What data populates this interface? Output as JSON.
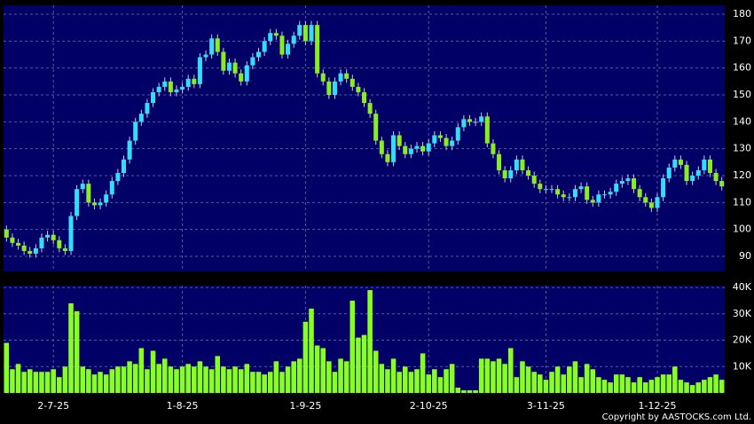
{
  "chart_data": [
    {
      "type": "candlestick",
      "up_color": "#33ddff",
      "down_color": "#88ee22",
      "grid": true,
      "ylim": [
        84.4,
        183.3
      ],
      "yticks": [
        90,
        100,
        110,
        120,
        130,
        140,
        150,
        160,
        170,
        180
      ],
      "open": [
        100,
        97,
        95,
        94,
        92,
        91,
        93,
        97,
        98,
        96,
        93,
        92,
        105,
        115,
        117,
        110,
        109,
        110,
        113,
        118,
        121,
        126,
        133,
        140,
        143,
        147,
        151,
        153,
        155,
        151,
        152,
        153,
        156,
        154,
        164,
        165,
        171,
        166,
        159,
        162,
        158,
        155,
        161,
        164,
        166,
        170,
        173,
        172,
        165,
        169,
        172,
        176,
        170,
        176,
        158,
        155,
        150,
        155,
        158,
        156,
        153,
        151,
        147,
        143,
        133,
        128,
        125,
        135,
        131,
        128,
        130,
        131,
        129,
        132,
        135,
        134,
        131,
        133,
        138,
        141,
        140,
        140,
        142,
        132,
        128,
        122,
        119,
        122,
        126,
        122,
        120,
        117,
        115,
        115,
        115,
        113,
        112,
        112,
        115,
        116,
        111,
        110,
        113,
        113,
        114,
        117,
        118,
        119,
        115,
        112,
        110,
        108,
        112,
        119,
        123,
        126,
        124,
        118,
        120,
        122,
        126,
        121,
        118
      ],
      "high": [
        101.5,
        98.5,
        96.5,
        95.5,
        93.5,
        94.5,
        98.5,
        99.5,
        99.5,
        97.5,
        94.5,
        106.5,
        116.5,
        118.5,
        118.5,
        111.5,
        111.5,
        114.5,
        119.5,
        122.5,
        127.5,
        134.5,
        141.5,
        144.5,
        148.5,
        152.5,
        154.5,
        156.5,
        156.5,
        153.5,
        154.5,
        157.5,
        157.5,
        165.5,
        166.5,
        172.5,
        172.5,
        167.5,
        163.5,
        163.5,
        159.5,
        162.5,
        165.5,
        167.5,
        171.5,
        174.5,
        174.5,
        173.5,
        170.5,
        173.5,
        177.5,
        177.5,
        177.5,
        177.5,
        159.5,
        156.5,
        156.5,
        159.5,
        159.5,
        157.5,
        154.5,
        152.5,
        148.5,
        144.5,
        134.5,
        129.5,
        136.5,
        136.5,
        132.5,
        131.5,
        132.5,
        132.5,
        133.5,
        136.5,
        136.5,
        135.5,
        134.5,
        139.5,
        142.5,
        142.5,
        141.5,
        143.5,
        143.5,
        133.5,
        129.5,
        123.5,
        123.5,
        127.5,
        127.5,
        123.5,
        121.5,
        118.5,
        116.5,
        116.5,
        116.5,
        114.5,
        113.5,
        116.5,
        117.5,
        117.5,
        112.5,
        114.5,
        114.5,
        115.5,
        118.5,
        119.5,
        120.5,
        120.5,
        116.5,
        113.5,
        111.5,
        113.5,
        120.5,
        124.5,
        127.5,
        127.5,
        125.5,
        121.5,
        123.5,
        127.5,
        127.5,
        122.5,
        119.5
      ],
      "low": [
        95.5,
        93.5,
        92.5,
        90.5,
        89.5,
        89.5,
        91.5,
        95.5,
        94.5,
        91.5,
        90.5,
        90.5,
        103.5,
        113.5,
        108.5,
        107.5,
        107.5,
        108.5,
        111.5,
        116.5,
        119.5,
        124.5,
        131.5,
        138.5,
        141.5,
        145.5,
        149.5,
        151.5,
        149.5,
        149.5,
        150.5,
        151.5,
        152.5,
        152.5,
        162.5,
        163.5,
        164.5,
        157.5,
        157.5,
        156.5,
        153.5,
        153.5,
        159.5,
        162.5,
        164.5,
        168.5,
        170.5,
        163.5,
        163.5,
        167.5,
        170.5,
        168.5,
        168.5,
        156.5,
        153.5,
        148.5,
        148.5,
        153.5,
        154.5,
        151.5,
        149.5,
        145.5,
        141.5,
        131.5,
        126.5,
        123.5,
        123.5,
        129.5,
        126.5,
        126.5,
        128.5,
        127.5,
        127.5,
        130.5,
        132.5,
        129.5,
        129.5,
        131.5,
        136.5,
        138.5,
        138.5,
        138.5,
        130.5,
        126.5,
        120.5,
        117.5,
        117.5,
        120.5,
        120.5,
        118.5,
        115.5,
        113.5,
        113.5,
        113.5,
        111.5,
        110.5,
        110.5,
        110.5,
        113.5,
        109.5,
        108.5,
        108.5,
        111.5,
        111.5,
        112.5,
        115.5,
        116.5,
        113.5,
        110.5,
        108.5,
        106.5,
        106.5,
        110.5,
        117.5,
        121.5,
        122.5,
        116.5,
        116.5,
        118.5,
        120.5,
        119.5,
        116.5,
        114.5
      ],
      "close": [
        97,
        95,
        94,
        92,
        91,
        93,
        97,
        98,
        96,
        93,
        92,
        105,
        115,
        117,
        110,
        109,
        110,
        113,
        118,
        121,
        126,
        133,
        140,
        143,
        147,
        151,
        153,
        155,
        151,
        152,
        153,
        156,
        154,
        164,
        165,
        171,
        166,
        159,
        162,
        158,
        155,
        161,
        164,
        166,
        170,
        173,
        172,
        165,
        169,
        172,
        176,
        170,
        176,
        158,
        155,
        150,
        155,
        158,
        156,
        153,
        151,
        147,
        143,
        133,
        128,
        125,
        135,
        131,
        128,
        130,
        131,
        129,
        132,
        135,
        134,
        131,
        133,
        138,
        141,
        140,
        140,
        142,
        132,
        128,
        122,
        119,
        122,
        126,
        122,
        120,
        117,
        115,
        115,
        115,
        113,
        112,
        112,
        115,
        116,
        111,
        110,
        113,
        113,
        114,
        117,
        118,
        119,
        115,
        112,
        110,
        108,
        112,
        119,
        123,
        126,
        124,
        118,
        120,
        122,
        126,
        121,
        118,
        116
      ]
    },
    {
      "type": "bar",
      "color": "#88ff22",
      "grid": true,
      "ylim": [
        0,
        40700
      ],
      "yticks": [
        {
          "value": 10000,
          "label": "10K"
        },
        {
          "value": 20000,
          "label": "20K"
        },
        {
          "value": 30000,
          "label": "30K"
        },
        {
          "value": 40000,
          "label": "40K"
        }
      ],
      "categories": [
        null,
        null,
        null,
        null,
        null,
        null,
        null,
        null,
        "2-7-25",
        null,
        null,
        null,
        null,
        null,
        null,
        null,
        null,
        null,
        null,
        null,
        null,
        null,
        null,
        null,
        null,
        null,
        null,
        null,
        null,
        null,
        "1-8-25",
        null,
        null,
        null,
        null,
        null,
        null,
        null,
        null,
        null,
        null,
        null,
        null,
        null,
        null,
        null,
        null,
        null,
        null,
        null,
        null,
        "1-9-25",
        null,
        null,
        null,
        null,
        null,
        null,
        null,
        null,
        null,
        null,
        null,
        null,
        null,
        null,
        null,
        null,
        null,
        null,
        null,
        null,
        "2-10-25",
        null,
        null,
        null,
        null,
        null,
        null,
        null,
        null,
        null,
        null,
        null,
        null,
        null,
        null,
        null,
        null,
        null,
        null,
        null,
        "3-11-25",
        null,
        null,
        null,
        null,
        null,
        null,
        null,
        null,
        null,
        null,
        null,
        null,
        null,
        null,
        null,
        null,
        null,
        null,
        "1-12-25",
        null,
        null,
        null,
        null,
        null,
        null,
        null,
        null,
        null,
        null,
        null
      ],
      "values": [
        19000,
        9000,
        11000,
        8000,
        9000,
        8000,
        8000,
        8000,
        9000,
        6000,
        10000,
        34000,
        31000,
        10000,
        9000,
        7000,
        8000,
        7000,
        9000,
        10000,
        10000,
        12000,
        11000,
        17000,
        9000,
        16000,
        11000,
        13000,
        10000,
        9000,
        10000,
        11000,
        10000,
        12000,
        10000,
        9000,
        14000,
        10000,
        9000,
        10000,
        9000,
        11000,
        8000,
        8000,
        7000,
        8000,
        12000,
        8000,
        10000,
        12000,
        13000,
        27000,
        32000,
        18000,
        17000,
        12000,
        8000,
        13000,
        12000,
        35000,
        21000,
        22000,
        39000,
        16000,
        11000,
        9000,
        13000,
        8000,
        10000,
        8000,
        9000,
        15000,
        7000,
        9000,
        6000,
        9000,
        11000,
        2000,
        1000,
        1000,
        1000,
        13000,
        13000,
        12000,
        13000,
        11000,
        17000,
        6000,
        12000,
        10000,
        8000,
        7000,
        5000,
        8000,
        10000,
        7000,
        10000,
        12000,
        6000,
        11000,
        9000,
        6000,
        5000,
        4000,
        7000,
        7000,
        6000,
        4000,
        6000,
        4000,
        5000,
        6000,
        7000,
        7000,
        10000,
        5000,
        4000,
        3000,
        4000,
        5000,
        6000,
        7000,
        5000
      ]
    }
  ],
  "copyright": "Copyright by AASTOCKS.com Ltd."
}
